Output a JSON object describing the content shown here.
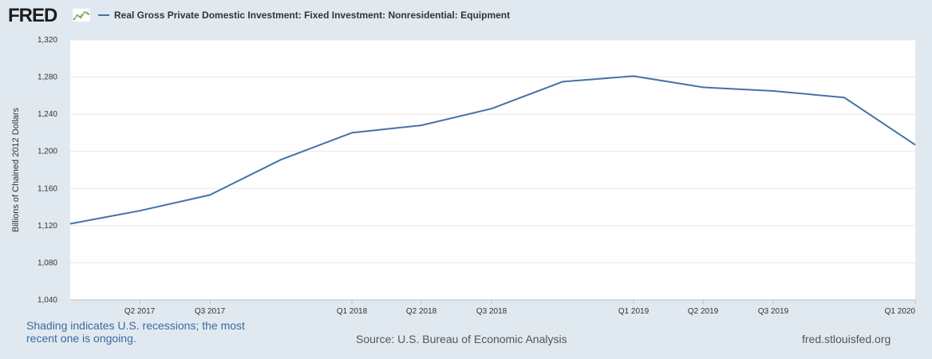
{
  "header": {
    "logo_text": "FRED",
    "logo_icon": "line-graph-icon"
  },
  "footer": {
    "recession_note": "Shading indicates U.S. recessions; the most recent one is ongoing.",
    "source": "Source: U.S. Bureau of Economic Analysis",
    "site": "fred.stlouisfed.org"
  },
  "colors": {
    "series": "#4572a7",
    "background": "#e1e9f0",
    "plot": "#ffffff",
    "grid": "#e6e6e6"
  },
  "chart_data": {
    "type": "line",
    "title": "",
    "xlabel": "",
    "ylabel": "Billions of Chained 2012 Dollars",
    "legend_position": "top-left",
    "grid": true,
    "ylim": [
      1040,
      1320
    ],
    "yticks": [
      "1,040",
      "1,080",
      "1,120",
      "1,160",
      "1,200",
      "1,240",
      "1,280",
      "1,320"
    ],
    "yticks_values": [
      1040,
      1080,
      1120,
      1160,
      1200,
      1240,
      1280,
      1320
    ],
    "xlim": [
      "2017-01-01",
      "2020-01-01"
    ],
    "xticks": [
      "Q2 2017",
      "Q3 2017",
      "Q1 2018",
      "Q2 2018",
      "Q3 2018",
      "Q1 2019",
      "Q2 2019",
      "Q3 2019",
      "Q1 2020"
    ],
    "xtick_dates": [
      "2017-04-01",
      "2017-07-01",
      "2018-01-01",
      "2018-04-01",
      "2018-07-01",
      "2019-01-01",
      "2019-04-01",
      "2019-07-01",
      "2020-01-01"
    ],
    "series": [
      {
        "name": "Real Gross Private Domestic Investment: Fixed Investment: Nonresidential: Equipment",
        "x": [
          "2017-01-01",
          "2017-04-01",
          "2017-07-01",
          "2017-10-01",
          "2018-01-01",
          "2018-04-01",
          "2018-07-01",
          "2018-10-01",
          "2019-01-01",
          "2019-04-01",
          "2019-07-01",
          "2019-10-01",
          "2020-01-01"
        ],
        "values": [
          1122,
          1136,
          1153,
          1191,
          1220,
          1228,
          1246,
          1275,
          1281,
          1269,
          1265,
          1258,
          1207
        ]
      }
    ]
  }
}
